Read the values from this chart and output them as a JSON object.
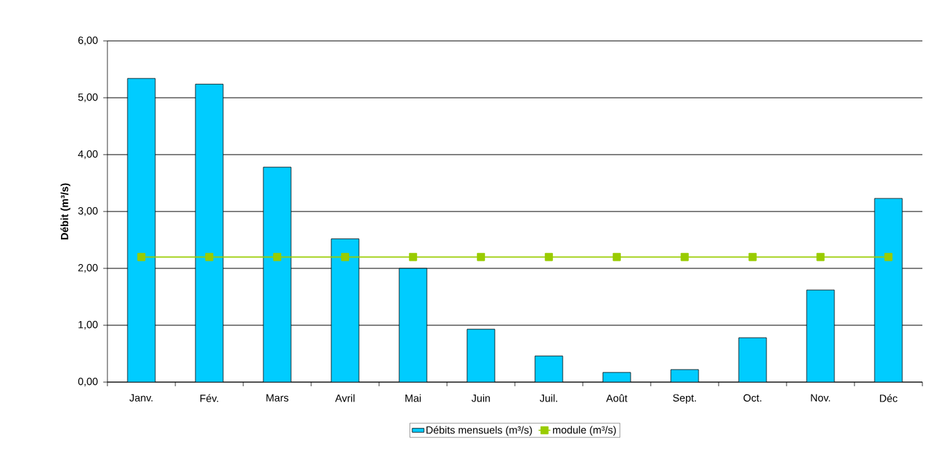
{
  "chart_data": {
    "type": "bar",
    "ylabel": "Débit (m³/s)",
    "categories": [
      "Janv.",
      "Fév.",
      "Mars",
      "Avril",
      "Mai",
      "Juin",
      "Juil.",
      "Août",
      "Sept.",
      "Oct.",
      "Nov.",
      "Déc"
    ],
    "series": [
      {
        "name": "Débits mensuels (m³/s)",
        "color": "#00ccff",
        "values": [
          5.34,
          5.24,
          3.78,
          2.52,
          2.0,
          0.93,
          0.46,
          0.17,
          0.22,
          0.78,
          1.62,
          3.23
        ]
      },
      {
        "name": "module (m³/s)",
        "type": "line",
        "color": "#99cc00",
        "marker": "square",
        "values": [
          2.2,
          2.2,
          2.2,
          2.2,
          2.2,
          2.2,
          2.2,
          2.2,
          2.2,
          2.2,
          2.2,
          2.2
        ]
      }
    ],
    "ylim": [
      0,
      6
    ],
    "yticks": [
      {
        "value": 0,
        "label": "0,00"
      },
      {
        "value": 1,
        "label": "1,00"
      },
      {
        "value": 2,
        "label": "2,00"
      },
      {
        "value": 3,
        "label": "3,00"
      },
      {
        "value": 4,
        "label": "4,00"
      },
      {
        "value": 5,
        "label": "5,00"
      },
      {
        "value": 6,
        "label": "6,00"
      }
    ],
    "grid": "y",
    "legend": "bottom"
  }
}
